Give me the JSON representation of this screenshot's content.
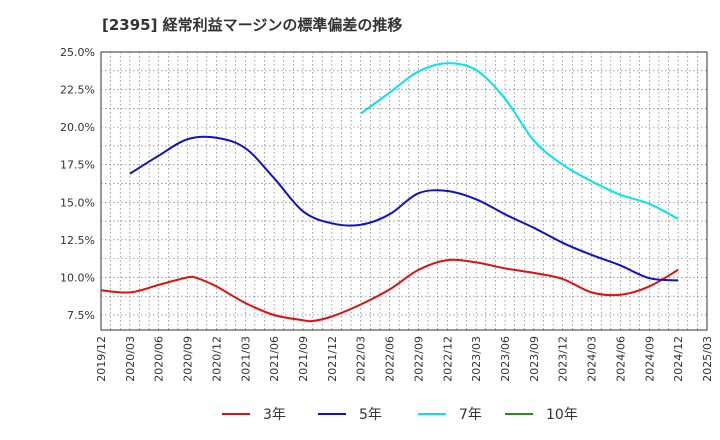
{
  "chart_data": {
    "type": "line",
    "title": "[2395]  経常利益マージンの標準偏差の推移",
    "xlabel": "",
    "ylabel": "",
    "ylim": [
      6.5,
      25.0
    ],
    "y_ticks": [
      "7.5%",
      "10.0%",
      "12.5%",
      "15.0%",
      "17.5%",
      "20.0%",
      "22.5%",
      "25.0%"
    ],
    "y_tick_values": [
      7.5,
      10.0,
      12.5,
      15.0,
      17.5,
      20.0,
      22.5,
      25.0
    ],
    "x_ticks": [
      "2019/12",
      "2020/03",
      "2020/06",
      "2020/09",
      "2020/12",
      "2021/03",
      "2021/06",
      "2021/09",
      "2021/12",
      "2022/03",
      "2022/06",
      "2022/09",
      "2022/12",
      "2023/03",
      "2023/06",
      "2023/09",
      "2023/12",
      "2024/03",
      "2024/06",
      "2024/09",
      "2024/12",
      "2025/03"
    ],
    "grid": true,
    "legend_position": "bottom",
    "series": [
      {
        "name": "3年",
        "color": "#dd1111",
        "points": [
          [
            "2019/12",
            9.15
          ],
          [
            "2020/03",
            9.0
          ],
          [
            "2020/06",
            9.5
          ],
          [
            "2020/09",
            10.0
          ],
          [
            "2020/10",
            9.95
          ],
          [
            "2020/12",
            9.4
          ],
          [
            "2021/03",
            8.3
          ],
          [
            "2021/06",
            7.5
          ],
          [
            "2021/09",
            7.15
          ],
          [
            "2021/10",
            7.1
          ],
          [
            "2021/12",
            7.4
          ],
          [
            "2022/03",
            8.2
          ],
          [
            "2022/06",
            9.2
          ],
          [
            "2022/09",
            10.5
          ],
          [
            "2022/12",
            11.15
          ],
          [
            "2023/03",
            11.0
          ],
          [
            "2023/06",
            10.6
          ],
          [
            "2023/09",
            10.3
          ],
          [
            "2023/12",
            9.9
          ],
          [
            "2024/03",
            9.0
          ],
          [
            "2024/06",
            8.85
          ],
          [
            "2024/09",
            9.4
          ],
          [
            "2024/12",
            10.5
          ]
        ]
      },
      {
        "name": "5年",
        "color": "#1111cc",
        "points": [
          [
            "2020/03",
            16.9
          ],
          [
            "2020/06",
            18.1
          ],
          [
            "2020/09",
            19.2
          ],
          [
            "2020/12",
            19.3
          ],
          [
            "2021/03",
            18.6
          ],
          [
            "2021/06",
            16.6
          ],
          [
            "2021/09",
            14.4
          ],
          [
            "2021/12",
            13.6
          ],
          [
            "2022/03",
            13.5
          ],
          [
            "2022/06",
            14.2
          ],
          [
            "2022/09",
            15.6
          ],
          [
            "2022/12",
            15.75
          ],
          [
            "2023/03",
            15.2
          ],
          [
            "2023/06",
            14.2
          ],
          [
            "2023/09",
            13.3
          ],
          [
            "2023/12",
            12.3
          ],
          [
            "2024/03",
            11.5
          ],
          [
            "2024/06",
            10.8
          ],
          [
            "2024/09",
            9.95
          ],
          [
            "2024/12",
            9.8
          ]
        ]
      },
      {
        "name": "7年",
        "color": "#00e5ee",
        "points": [
          [
            "2022/03",
            20.9
          ],
          [
            "2022/06",
            22.3
          ],
          [
            "2022/09",
            23.7
          ],
          [
            "2022/12",
            24.25
          ],
          [
            "2023/03",
            23.8
          ],
          [
            "2023/06",
            21.9
          ],
          [
            "2023/09",
            19.1
          ],
          [
            "2023/12",
            17.5
          ],
          [
            "2024/03",
            16.4
          ],
          [
            "2024/06",
            15.5
          ],
          [
            "2024/09",
            14.9
          ],
          [
            "2024/12",
            13.9
          ]
        ]
      },
      {
        "name": "10年",
        "color": "#228b22",
        "points": []
      }
    ]
  }
}
